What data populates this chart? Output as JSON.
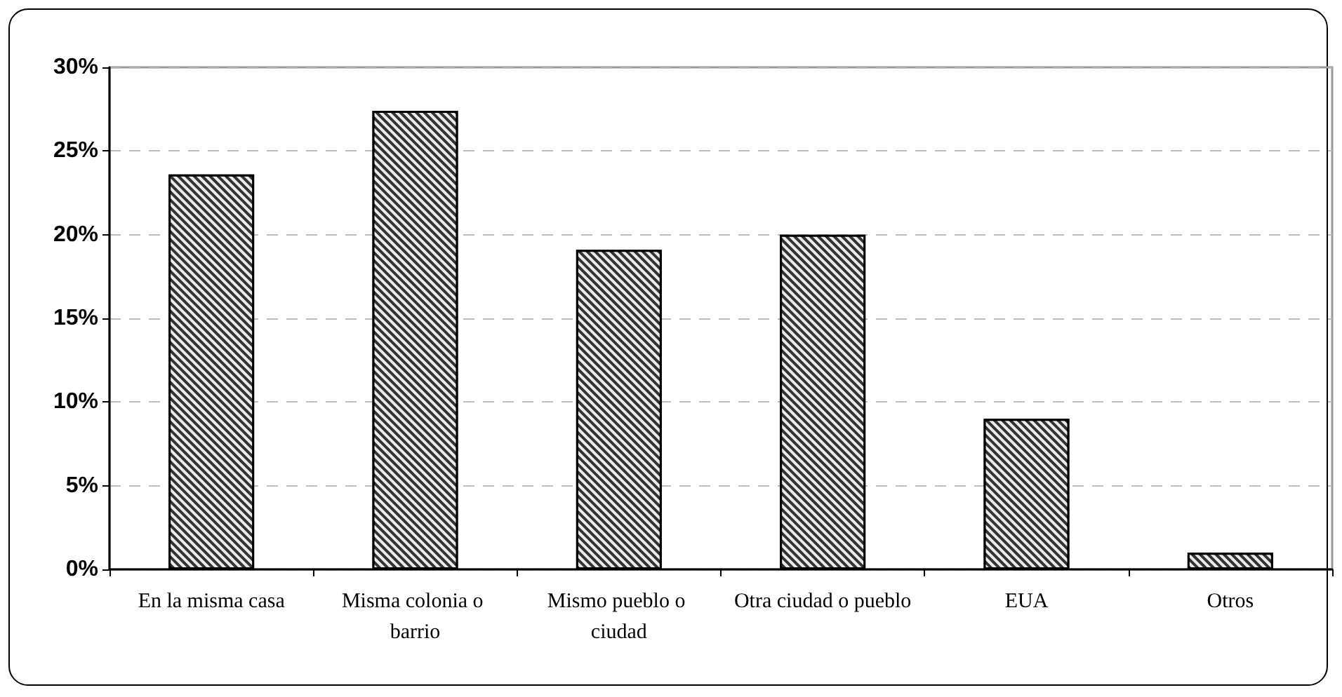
{
  "chart_data": {
    "type": "bar",
    "categories": [
      "En la misma casa",
      "Misma colonia o barrio",
      "Mismo pueblo o ciudad",
      "Otra ciudad o pueblo",
      "EUA",
      "Otros"
    ],
    "values": [
      23.6,
      27.4,
      19.1,
      20.0,
      9.0,
      1.0
    ],
    "color": "#333333",
    "ylim": [
      0,
      30
    ],
    "yticks": [
      {
        "value": 0,
        "label": "0%"
      },
      {
        "value": 5,
        "label": "5%"
      },
      {
        "value": 10,
        "label": "10%"
      },
      {
        "value": 15,
        "label": "15%"
      },
      {
        "value": 20,
        "label": "20%"
      },
      {
        "value": 25,
        "label": "25%"
      },
      {
        "value": 30,
        "label": "30%"
      }
    ],
    "grid": "y"
  }
}
